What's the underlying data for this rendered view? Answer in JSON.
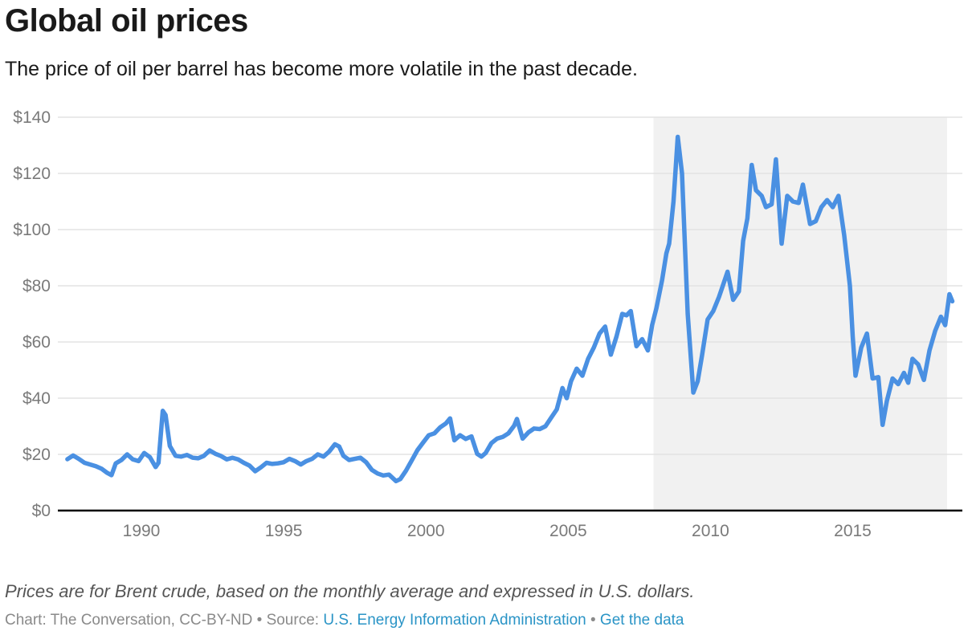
{
  "header": {
    "title": "Global oil prices",
    "subtitle": "The price of oil per barrel has become more volatile in the past decade."
  },
  "footer": {
    "note": "Prices are for Brent crude, based on the monthly average and expressed in U.S. dollars.",
    "credit_prefix": "Chart: The Conversation, CC-BY-ND",
    "separator": " • ",
    "source_label": "Source: ",
    "source_link": "U.S. Energy Information Administration",
    "data_link": "Get the data"
  },
  "colors": {
    "line": "#4a90e2",
    "highlight_band": "#f1f1f1",
    "gridline": "#e3e3e3",
    "baseline": "#000000",
    "link": "#2a94c6"
  },
  "chart_data": {
    "type": "line",
    "title": "Global oil prices",
    "subtitle": "The price of oil per barrel has become more volatile in the past decade.",
    "xlabel": "",
    "ylabel": "",
    "xlim": [
      1986.9,
      2019.3
    ],
    "ylim": [
      0,
      140
    ],
    "yticks": [
      0,
      20,
      40,
      60,
      80,
      100,
      120,
      140
    ],
    "ytick_labels": [
      "$0",
      "$20",
      "$40",
      "$60",
      "$80",
      "$100",
      "$120",
      "$140"
    ],
    "xticks": [
      1990,
      1995,
      2000,
      2005,
      2010,
      2015
    ],
    "xtick_labels": [
      "1990",
      "1995",
      "2000",
      "2005",
      "2010",
      "2015"
    ],
    "grid": true,
    "legend": "none",
    "highlight_range": [
      2008.0,
      2018.5
    ],
    "series": [
      {
        "name": "Brent crude monthly average (USD per barrel)",
        "x": [
          1987.4,
          1987.6,
          1987.8,
          1988.0,
          1988.2,
          1988.4,
          1988.6,
          1988.8,
          1988.95,
          1989.1,
          1989.3,
          1989.5,
          1989.7,
          1989.9,
          1990.1,
          1990.3,
          1990.5,
          1990.6,
          1990.75,
          1990.85,
          1991.0,
          1991.2,
          1991.4,
          1991.6,
          1991.8,
          1992.0,
          1992.2,
          1992.4,
          1992.6,
          1992.8,
          1993.0,
          1993.2,
          1993.4,
          1993.6,
          1993.8,
          1994.0,
          1994.2,
          1994.4,
          1994.6,
          1994.8,
          1995.0,
          1995.2,
          1995.4,
          1995.6,
          1995.8,
          1996.0,
          1996.2,
          1996.4,
          1996.6,
          1996.8,
          1996.95,
          1997.1,
          1997.3,
          1997.5,
          1997.7,
          1997.9,
          1998.1,
          1998.3,
          1998.5,
          1998.7,
          1998.95,
          1999.1,
          1999.3,
          1999.5,
          1999.7,
          1999.9,
          2000.1,
          2000.3,
          2000.5,
          2000.7,
          2000.85,
          2001.0,
          2001.2,
          2001.4,
          2001.6,
          2001.8,
          2001.95,
          2002.1,
          2002.3,
          2002.5,
          2002.7,
          2002.9,
          2003.1,
          2003.2,
          2003.4,
          2003.6,
          2003.8,
          2004.0,
          2004.2,
          2004.4,
          2004.6,
          2004.8,
          2004.95,
          2005.1,
          2005.3,
          2005.5,
          2005.7,
          2005.9,
          2006.1,
          2006.3,
          2006.5,
          2006.7,
          2006.9,
          2007.05,
          2007.2,
          2007.4,
          2007.6,
          2007.8,
          2007.95,
          2008.1,
          2008.3,
          2008.45,
          2008.55,
          2008.7,
          2008.85,
          2009.0,
          2009.2,
          2009.4,
          2009.55,
          2009.7,
          2009.9,
          2010.1,
          2010.3,
          2010.4,
          2010.6,
          2010.8,
          2011.0,
          2011.15,
          2011.3,
          2011.45,
          2011.6,
          2011.8,
          2011.95,
          2012.15,
          2012.3,
          2012.5,
          2012.7,
          2012.9,
          2013.1,
          2013.25,
          2013.5,
          2013.7,
          2013.9,
          2014.1,
          2014.3,
          2014.5,
          2014.7,
          2014.9,
          2015.0,
          2015.1,
          2015.3,
          2015.5,
          2015.7,
          2015.9,
          2016.05,
          2016.2,
          2016.4,
          2016.6,
          2016.8,
          2016.95,
          2017.1,
          2017.3,
          2017.5,
          2017.7,
          2017.9,
          2018.1,
          2018.25,
          2018.4,
          2018.5
        ],
        "values": [
          18.3,
          19.6,
          18.4,
          17.0,
          16.4,
          15.8,
          14.9,
          13.4,
          12.6,
          16.8,
          18.0,
          20.0,
          18.2,
          17.6,
          20.5,
          19.0,
          15.5,
          17.0,
          35.5,
          34.0,
          23.0,
          19.5,
          19.2,
          19.8,
          18.8,
          18.6,
          19.5,
          21.4,
          20.2,
          19.4,
          18.2,
          18.8,
          18.2,
          17.0,
          16.0,
          14.0,
          15.4,
          17.0,
          16.6,
          16.8,
          17.2,
          18.4,
          17.6,
          16.4,
          17.6,
          18.4,
          20.0,
          19.2,
          21.0,
          23.6,
          22.8,
          19.5,
          18.0,
          18.4,
          18.8,
          17.2,
          14.5,
          13.2,
          12.5,
          12.8,
          10.5,
          11.2,
          14.2,
          17.8,
          21.5,
          24.2,
          26.8,
          27.5,
          29.6,
          31.0,
          32.8,
          25.0,
          26.8,
          25.5,
          26.4,
          20.2,
          19.2,
          20.5,
          24.0,
          25.6,
          26.2,
          27.5,
          30.2,
          32.6,
          25.6,
          27.8,
          29.2,
          29.0,
          30.0,
          33.0,
          36.0,
          43.6,
          40.0,
          46.0,
          50.5,
          48.0,
          54.0,
          58.0,
          63.0,
          65.5,
          55.5,
          62.0,
          70.0,
          69.5,
          71.0,
          58.5,
          61.0,
          57.0,
          66.0,
          72.0,
          82.0,
          91.5,
          95.0,
          110.0,
          133.0,
          120.0,
          70.0,
          42.0,
          46.0,
          55.0,
          68.0,
          71.0,
          76.0,
          79.0,
          85.0,
          75.0,
          78.0,
          96.0,
          104.0,
          123.0,
          114.0,
          112.0,
          108.0,
          109.0,
          125.0,
          95.0,
          112.0,
          110.0,
          109.5,
          116.0,
          102.0,
          103.0,
          108.0,
          110.5,
          108.0,
          112.0,
          98.0,
          80.0,
          62.0,
          48.0,
          58.0,
          63.0,
          47.0,
          47.5,
          30.5,
          39.0,
          47.0,
          45.0,
          49.0,
          45.5,
          54.0,
          52.0,
          46.5,
          57.0,
          64.0,
          69.0,
          66.0,
          77.0,
          74.5
        ]
      }
    ]
  }
}
